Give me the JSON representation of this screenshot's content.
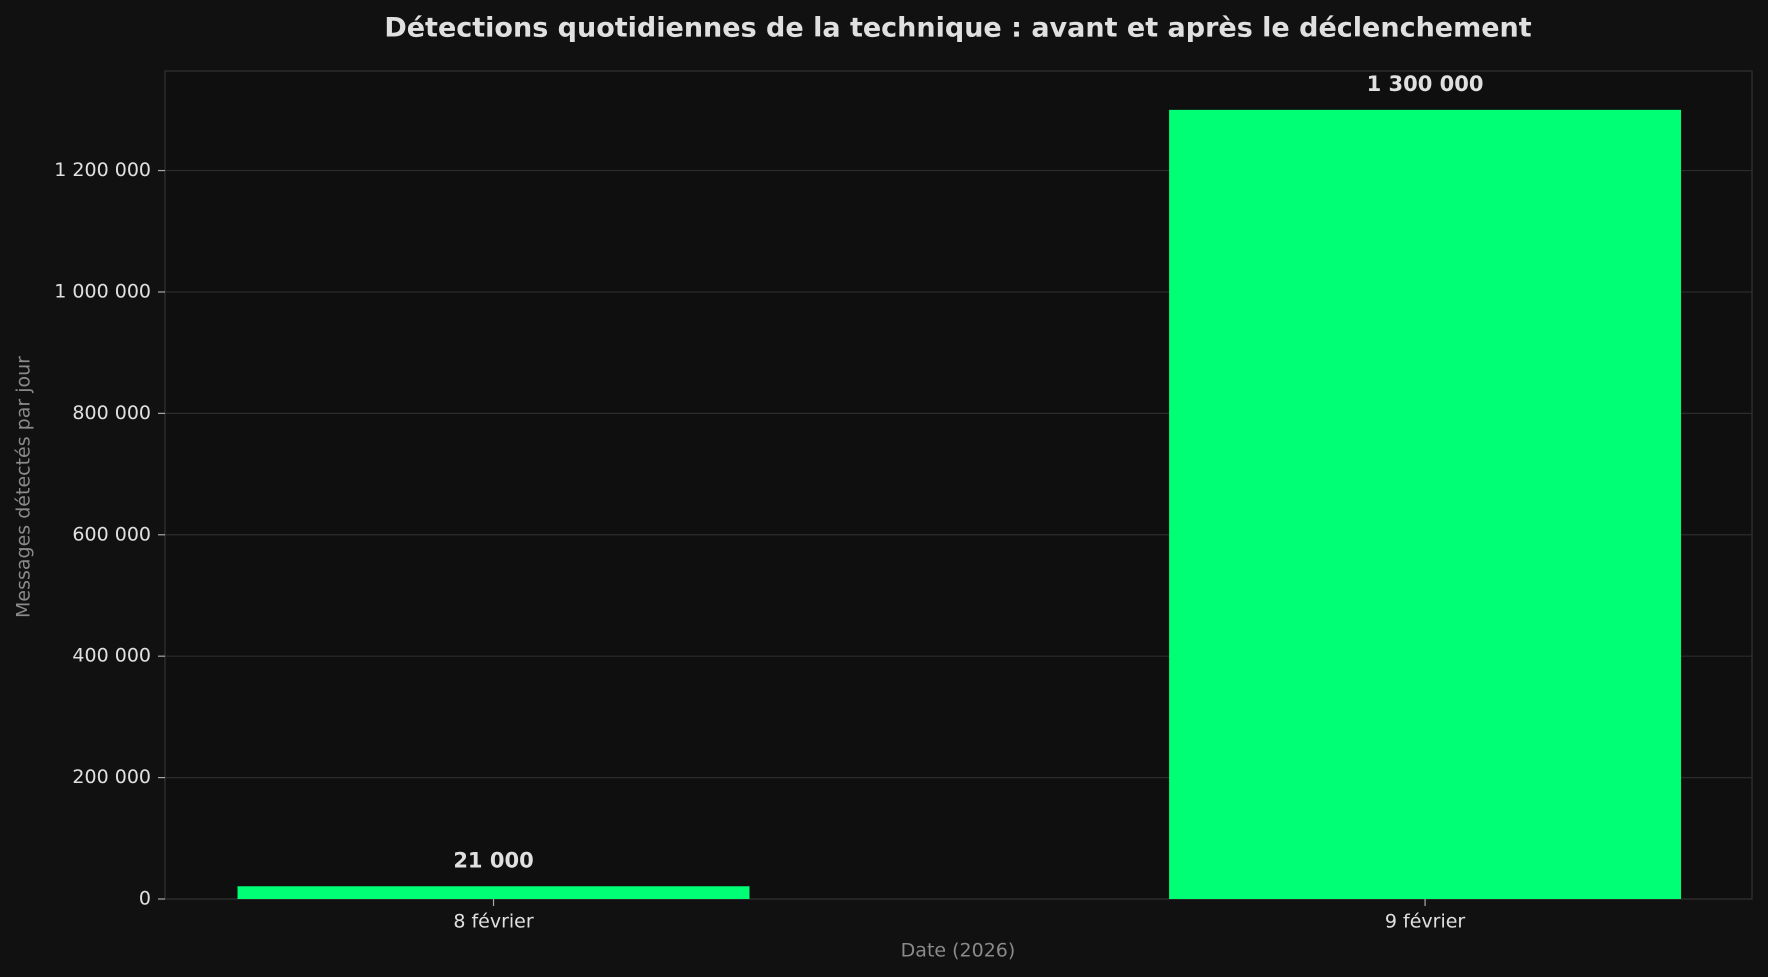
{
  "chart_data": {
    "type": "bar",
    "title": "Détections quotidiennes de la technique : avant et après le déclenchement",
    "x_label": "Date (2026)",
    "y_label": "Messages détectés par jour",
    "categories": [
      "8 février",
      "9 février"
    ],
    "values": [
      21000,
      1300000
    ],
    "value_labels": [
      "21 000",
      "1 300 000"
    ],
    "color": "#00ff75",
    "ylim": [
      0,
      1364000
    ],
    "yticks": [
      0,
      {
        "value": 200000,
        "label": "200 000"
      },
      {
        "value": 400000,
        "label": "400 000"
      },
      {
        "value": 600000,
        "label": "600 000"
      },
      {
        "value": 800000,
        "label": "800 000"
      },
      {
        "value": 1000000,
        "label": "1 000 000"
      },
      {
        "value": 1200000,
        "label": "1 200 000"
      }
    ],
    "grid": true
  }
}
